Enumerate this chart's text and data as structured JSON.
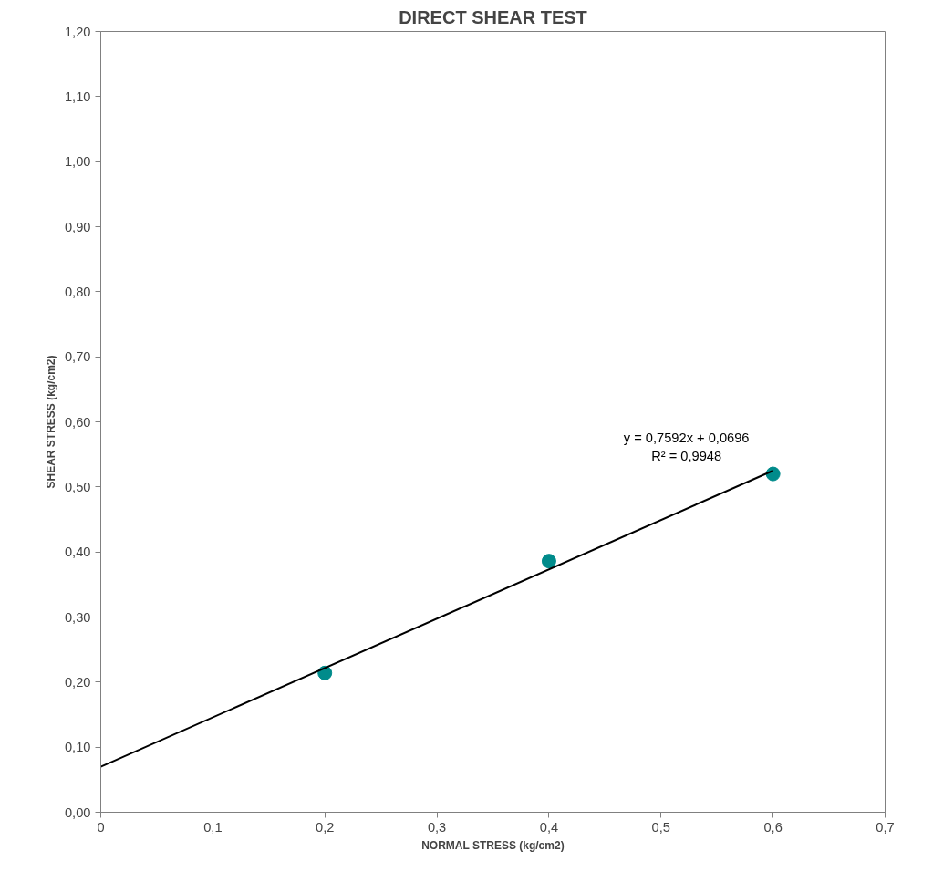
{
  "chart_data": {
    "type": "scatter",
    "title": "DIRECT SHEAR TEST",
    "xlabel": "NORMAL STRESS (kg/cm2)",
    "ylabel": "SHEAR STRESS (kg/cm2)",
    "x": [
      0.2,
      0.4,
      0.6
    ],
    "series": [
      {
        "color": "#008b8b",
        "values": [
          0.214,
          0.386,
          0.52
        ],
        "marker": "circle"
      },
      {
        "type": "line",
        "color": "#000000",
        "x": [
          0,
          0.6
        ],
        "values": [
          0.07,
          0.525
        ],
        "marker": "none",
        "line_style": "solid"
      }
    ],
    "annotations": [
      "y = 0,7592x + 0,0696",
      "R² = 0,9948"
    ],
    "xlim": [
      0,
      0.7
    ],
    "ylim": [
      0,
      1.2
    ],
    "xticks": [
      0,
      {
        "value": 0.1,
        "label": "0,1"
      },
      {
        "value": 0.2,
        "label": "0,2"
      },
      {
        "value": 0.3,
        "label": "0,3"
      },
      {
        "value": 0.4,
        "label": "0,4"
      },
      {
        "value": 0.5,
        "label": "0,5"
      },
      {
        "value": 0.6,
        "label": "0,6"
      },
      {
        "value": 0.7,
        "label": "0,7"
      }
    ],
    "yticks": [
      {
        "value": 0,
        "label": "0,00"
      },
      {
        "value": 0.1,
        "label": "0,10"
      },
      {
        "value": 0.2,
        "label": "0,20"
      },
      {
        "value": 0.3,
        "label": "0,30"
      },
      {
        "value": 0.4,
        "label": "0,40"
      },
      {
        "value": 0.5,
        "label": "0,50"
      },
      {
        "value": 0.6,
        "label": "0,60"
      },
      {
        "value": 0.7,
        "label": "0,70"
      },
      {
        "value": 0.8,
        "label": "0,80"
      },
      {
        "value": 0.9,
        "label": "0,90"
      },
      {
        "value": 1.0,
        "label": "1,00"
      },
      {
        "value": 1.1,
        "label": "1,10"
      },
      {
        "value": 1.2,
        "label": "1,20"
      }
    ],
    "grid": false
  }
}
